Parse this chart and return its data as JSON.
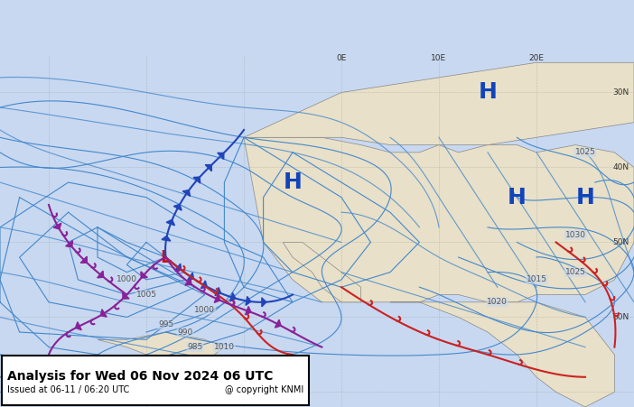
{
  "title": "Analysis for Wed 06 Nov 2024 06 UTC",
  "subtitle": "Issued at 06-11 / 06:20 UTC",
  "copyright": "@ copyright KNMI",
  "bg_ocean": "#c8d8f0",
  "bg_land": "#e8e0c8",
  "isobar_color": "#4488cc",
  "isobar_thin_color": "#66aadd",
  "front_cold_color": "#2244bb",
  "front_warm_color": "#cc2222",
  "front_occluded_color": "#882299",
  "label_color": "#555555",
  "H_color": "#1144bb",
  "L_color": "#cc1111",
  "figsize": [
    7.02,
    4.51
  ],
  "dpi": 100,
  "box_bg": "#ffffff",
  "box_edge": "#000000"
}
